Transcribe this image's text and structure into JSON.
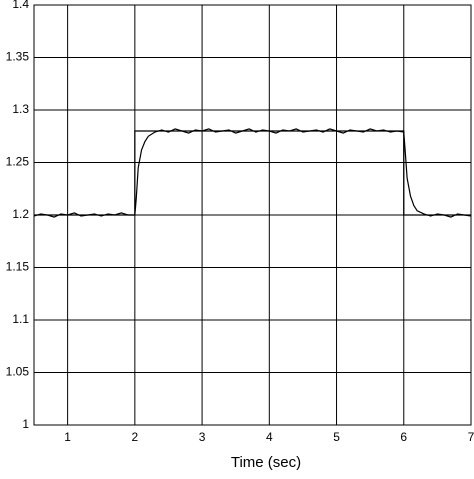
{
  "chart_data": {
    "type": "line",
    "xlabel": "Time (sec)",
    "xlim": [
      0.5,
      7
    ],
    "xticks": [
      1,
      2,
      3,
      4,
      5,
      6,
      7
    ],
    "ylim": [
      1,
      1.4
    ],
    "yticks": [
      1,
      1.05,
      1.1,
      1.15,
      1.2,
      1.25,
      1.3,
      1.35,
      1.4
    ],
    "grid": true,
    "series": [
      {
        "color": "#000000",
        "x": [
          0.5,
          2,
          2,
          6,
          6,
          7
        ],
        "values": [
          1.2,
          1.2,
          1.28,
          1.28,
          1.2,
          1.2
        ]
      },
      {
        "color": "#000000",
        "x": [
          0.5,
          0.6,
          0.7,
          0.8,
          0.9,
          1.0,
          1.1,
          1.2,
          1.3,
          1.4,
          1.5,
          1.6,
          1.7,
          1.8,
          1.9,
          2.0,
          2.02,
          2.05,
          2.1,
          2.15,
          2.2,
          2.3,
          2.4,
          2.5,
          2.6,
          2.7,
          2.8,
          2.9,
          3.0,
          3.1,
          3.2,
          3.3,
          3.4,
          3.5,
          3.6,
          3.7,
          3.8,
          3.9,
          4.0,
          4.1,
          4.2,
          4.3,
          4.4,
          4.5,
          4.6,
          4.7,
          4.8,
          4.9,
          5.0,
          5.1,
          5.2,
          5.3,
          5.4,
          5.5,
          5.6,
          5.7,
          5.8,
          5.9,
          6.0,
          6.02,
          6.05,
          6.1,
          6.15,
          6.2,
          6.3,
          6.4,
          6.5,
          6.6,
          6.7,
          6.8,
          6.9,
          7.0
        ],
        "values": [
          1.199,
          1.201,
          1.2,
          1.198,
          1.201,
          1.2,
          1.202,
          1.199,
          1.2,
          1.201,
          1.199,
          1.201,
          1.2,
          1.202,
          1.2,
          1.2,
          1.215,
          1.245,
          1.262,
          1.27,
          1.275,
          1.279,
          1.281,
          1.279,
          1.282,
          1.28,
          1.278,
          1.281,
          1.28,
          1.282,
          1.279,
          1.28,
          1.281,
          1.278,
          1.28,
          1.282,
          1.279,
          1.281,
          1.28,
          1.278,
          1.281,
          1.28,
          1.282,
          1.279,
          1.28,
          1.281,
          1.279,
          1.282,
          1.28,
          1.278,
          1.281,
          1.28,
          1.279,
          1.282,
          1.28,
          1.281,
          1.279,
          1.28,
          1.279,
          1.262,
          1.235,
          1.218,
          1.209,
          1.204,
          1.201,
          1.199,
          1.201,
          1.2,
          1.198,
          1.201,
          1.2,
          1.199
        ]
      }
    ]
  }
}
